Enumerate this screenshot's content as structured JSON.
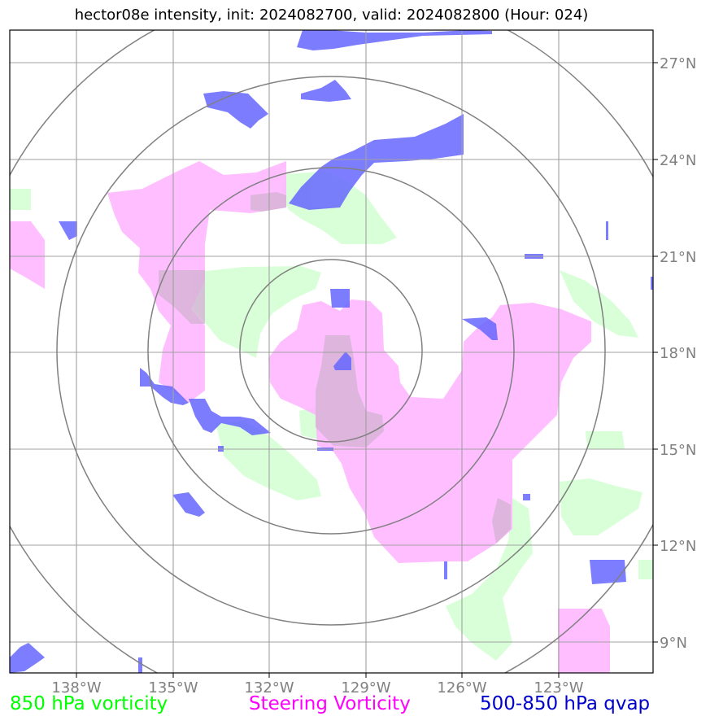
{
  "title": "hector08e intensity, init: 2024082700, valid: 2024082800 (Hour: 024)",
  "map": {
    "lon_ticks": [
      "138°W",
      "135°W",
      "132°W",
      "129°W",
      "126°W",
      "123°W"
    ],
    "lat_ticks": [
      "27°N",
      "24°N",
      "21°N",
      "18°N",
      "15°N",
      "12°N",
      "9°N"
    ],
    "range_rings": 4,
    "colors": {
      "vorticity_850": "#ccffcc",
      "steering_vorticity": "#ffb3ff",
      "qvap": "#6666ff",
      "grid": "#a0a0a0",
      "rings": "#808080"
    }
  },
  "legend": {
    "vorticity_850": "850 hPa vorticity",
    "steering_vorticity": "Steering Vorticity",
    "qvap": "500-850 hPa qvap"
  }
}
